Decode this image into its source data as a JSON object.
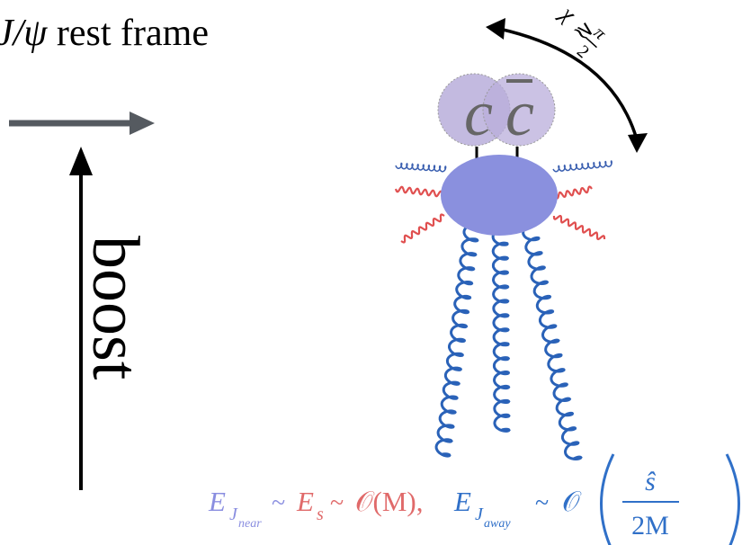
{
  "title": {
    "symbol": "J/ψ",
    "text": "rest frame"
  },
  "boost_label": "boost",
  "quarks": {
    "quark": "c",
    "antiquark": "c"
  },
  "angle": {
    "symbol": "χ",
    "relation": "≳",
    "numerator": "π",
    "denominator": "2"
  },
  "formula": {
    "near": {
      "symbol": "E",
      "sub": "J",
      "subsub": "near",
      "relation": "~"
    },
    "soft": {
      "symbol": "E",
      "sub": "s",
      "relation": "~",
      "order": "𝒪(M),"
    },
    "away": {
      "symbol": "E",
      "sub": "J",
      "subsub": "away",
      "relation": "~",
      "order": "𝒪",
      "numerator": "ŝ",
      "denominator": "2M"
    }
  }
}
